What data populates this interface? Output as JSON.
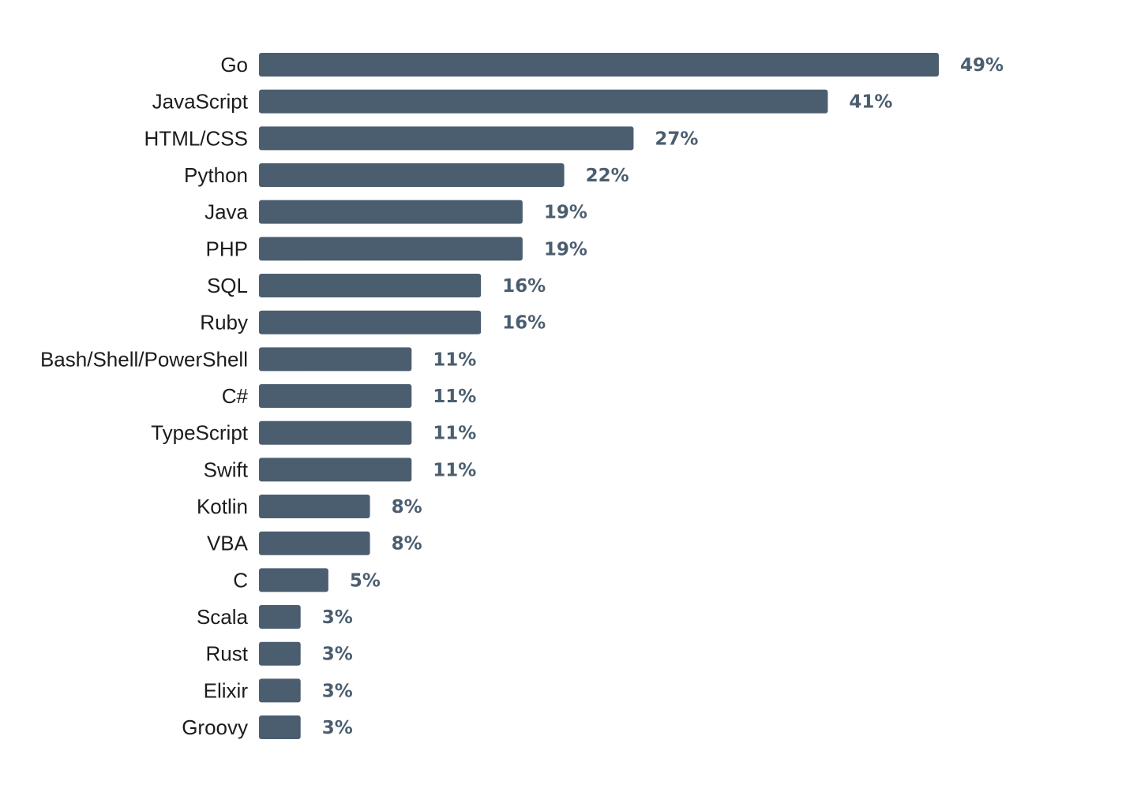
{
  "colors": {
    "bar": "#4b5e70",
    "value_text": "#4b5e70",
    "label_text": "#1c1c1c",
    "background": "#ffffff"
  },
  "chart_data": {
    "type": "bar",
    "orientation": "horizontal",
    "value_suffix": "%",
    "xlim": [
      0,
      49
    ],
    "grid": false,
    "legend": "none",
    "categories": [
      "Go",
      "JavaScript",
      "HTML/CSS",
      "Python",
      "Java",
      "PHP",
      "SQL",
      "Ruby",
      "Bash/Shell/PowerShell",
      "C#",
      "TypeScript",
      "Swift",
      "Kotlin",
      "VBA",
      "C",
      "Scala",
      "Rust",
      "Elixir",
      "Groovy"
    ],
    "values": [
      49,
      41,
      27,
      22,
      19,
      19,
      16,
      16,
      11,
      11,
      11,
      11,
      8,
      8,
      5,
      3,
      3,
      3,
      3
    ]
  }
}
